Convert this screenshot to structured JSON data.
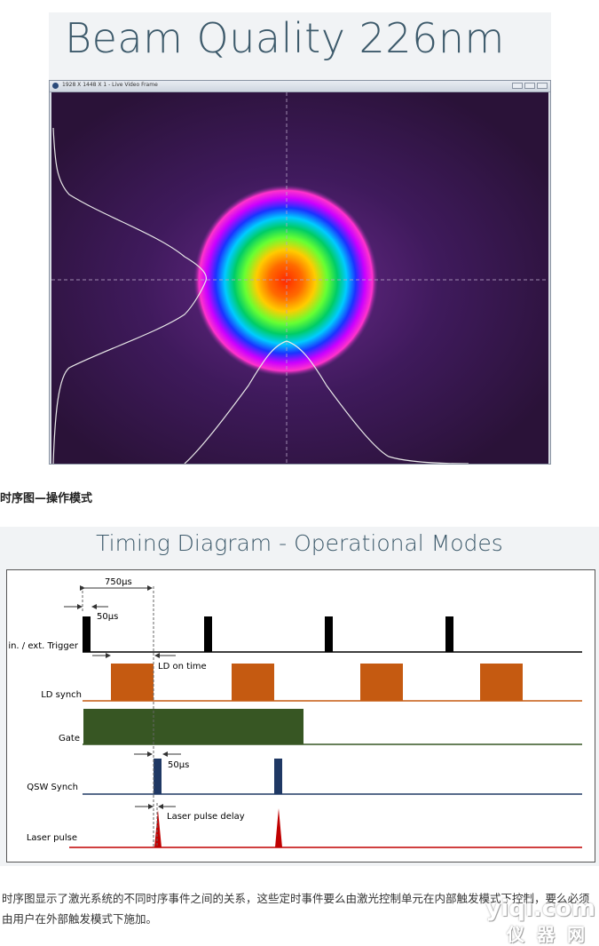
{
  "hero": {
    "title": "Beam Quality 226nm"
  },
  "beam_window": {
    "title": "1928 X 1448 X 1 - Live Video Frame"
  },
  "section_heading": "时序图—操作模式",
  "timing": {
    "title": "Timing Diagram - Operational Modes",
    "rows": {
      "trigger": "in. / ext. Trigger",
      "ld_synch": "LD synch",
      "gate": "Gate",
      "qsw_synch": "QSW Synch",
      "laser_pulse": "Laser pulse"
    },
    "annotations": {
      "period": "750µs",
      "trigger_width": "50µs",
      "ld_on_time": "LD on time",
      "qsw_width": "50µs",
      "pulse_delay": "Laser pulse delay"
    },
    "colors": {
      "trigger": "#000000",
      "ld_synch": "#c55a11",
      "gate": "#375623",
      "qsw_synch": "#1f3864",
      "laser_pulse": "#c00000"
    }
  },
  "paragraph": "时序图显示了激光系统的不同时序事件之间的关系，这些定时事件要么由激光控制单元在内部触发模式下控制，要么必须由用户在外部触发模式下施加。",
  "watermark": {
    "top": "yiqi.com",
    "bottom": "仪器网"
  }
}
